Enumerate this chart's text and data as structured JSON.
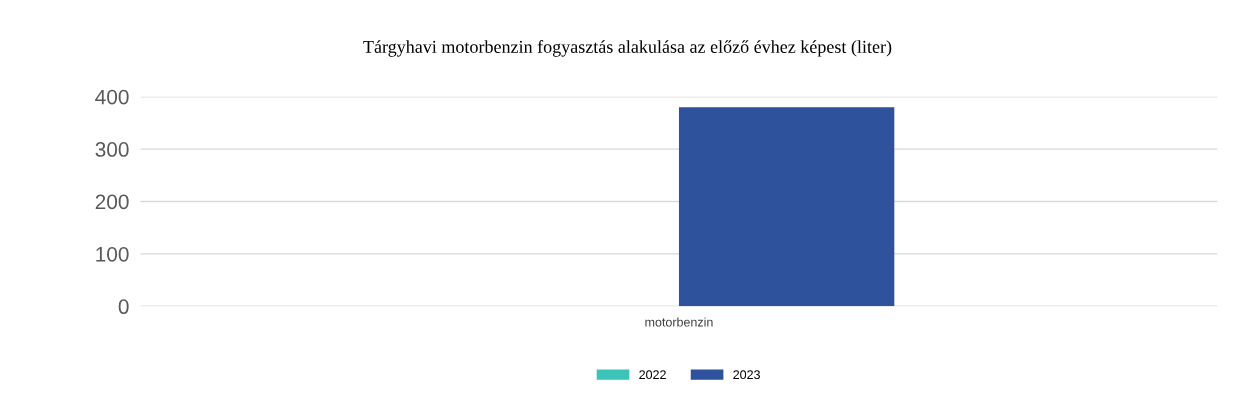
{
  "chart_data": {
    "type": "bar",
    "title": "Tárgyhavi motorbenzin fogyasztás alakulása az előző évhez képest (liter)",
    "categories": [
      "motorbenzin"
    ],
    "series": [
      {
        "name": "2022",
        "color": "#3cc4b8",
        "values": [
          0
        ]
      },
      {
        "name": "2023",
        "color": "#2e529c",
        "values": [
          380
        ]
      }
    ],
    "ylim": [
      0,
      400
    ],
    "yticks": [
      0,
      100,
      200,
      300,
      400
    ],
    "grid": "y",
    "legend": "bottom"
  }
}
